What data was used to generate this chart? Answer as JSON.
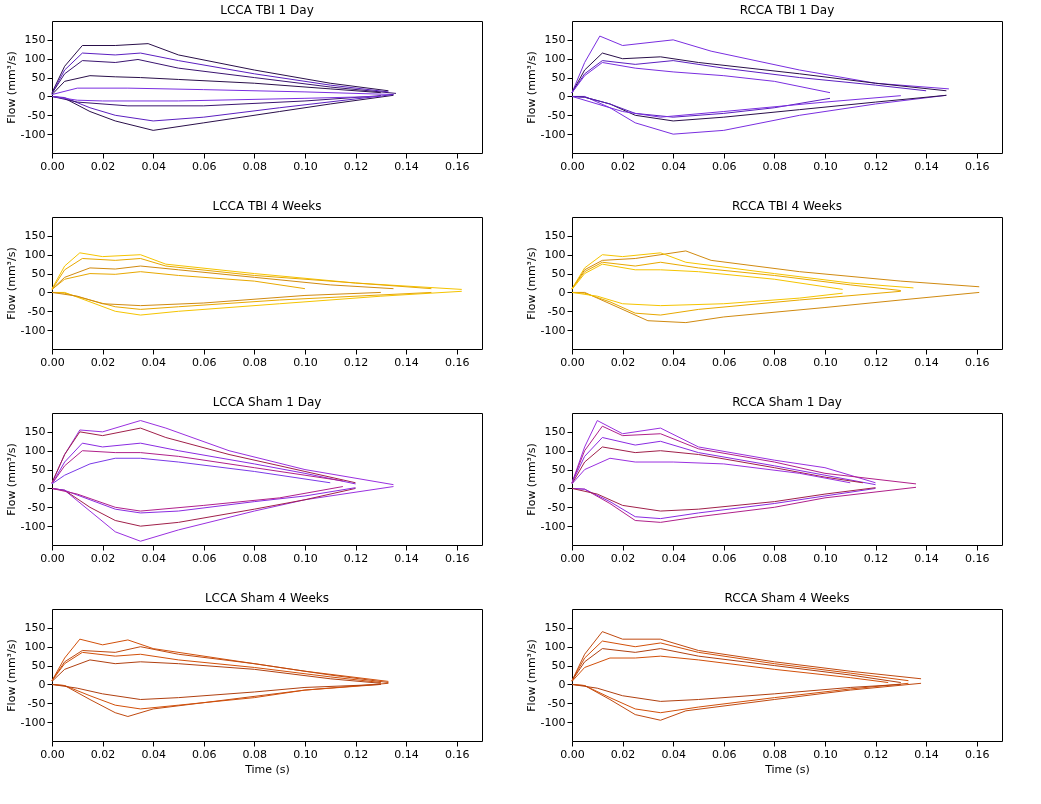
{
  "chart_data": [
    {
      "type": "line",
      "title": "LCCA TBI 1 Day",
      "ylabel": "Flow (mm³/s)",
      "xlim": [
        0,
        0.17
      ],
      "ylim": [
        -150,
        200
      ],
      "xticks": [
        {
          "value": 0,
          "label": "0.00"
        },
        {
          "value": 0.02,
          "label": "0.02"
        },
        {
          "value": 0.04,
          "label": "0.04"
        },
        {
          "value": 0.06,
          "label": "0.06"
        },
        {
          "value": 0.08,
          "label": "0.08"
        },
        {
          "value": 0.1,
          "label": "0.10"
        },
        {
          "value": 0.12,
          "label": "0.12"
        },
        {
          "value": 0.14,
          "label": "0.14"
        },
        {
          "value": 0.16,
          "label": "0.16"
        }
      ],
      "yticks": [
        -100,
        -50,
        0,
        50,
        100,
        150
      ],
      "series": [
        {
          "color": "#2a0f4a",
          "x": [
            0,
            0.005,
            0.012,
            0.025,
            0.038,
            0.05,
            0.08,
            0.11,
            0.133
          ],
          "values": [
            10,
            80,
            135,
            135,
            140,
            110,
            70,
            35,
            15
          ]
        },
        {
          "color": "#5b1fc0",
          "x": [
            0,
            0.005,
            0.012,
            0.025,
            0.035,
            0.05,
            0.08,
            0.11,
            0.133
          ],
          "values": [
            8,
            70,
            115,
            110,
            115,
            95,
            60,
            30,
            12
          ]
        },
        {
          "color": "#3a1470",
          "x": [
            0,
            0.005,
            0.012,
            0.025,
            0.034,
            0.05,
            0.08,
            0.11,
            0.136
          ],
          "values": [
            8,
            60,
            95,
            90,
            98,
            75,
            50,
            25,
            8
          ]
        },
        {
          "color": "#2a0f4a",
          "x": [
            0,
            0.005,
            0.015,
            0.025,
            0.035,
            0.05,
            0.08,
            0.11,
            0.13
          ],
          "values": [
            5,
            40,
            55,
            52,
            50,
            45,
            35,
            20,
            10
          ]
        },
        {
          "color": "#7a2ee0",
          "x": [
            0,
            0.01,
            0.03,
            0.06,
            0.1,
            0.135
          ],
          "values": [
            5,
            22,
            22,
            18,
            12,
            5
          ]
        },
        {
          "color": "#2a0f4a",
          "x": [
            0,
            0.005,
            0.015,
            0.025,
            0.04,
            0.06,
            0.09,
            0.11,
            0.135
          ],
          "values": [
            0,
            -5,
            -40,
            -65,
            -90,
            -70,
            -40,
            -20,
            3
          ]
        },
        {
          "color": "#5b1fc0",
          "x": [
            0,
            0.005,
            0.015,
            0.025,
            0.04,
            0.06,
            0.09,
            0.135
          ],
          "values": [
            0,
            -3,
            -30,
            -50,
            -65,
            -55,
            -30,
            5
          ]
        },
        {
          "color": "#3a1470",
          "x": [
            0,
            0.01,
            0.03,
            0.06,
            0.1,
            0.13
          ],
          "values": [
            0,
            -15,
            -25,
            -25,
            -12,
            2
          ]
        },
        {
          "color": "#7a2ee0",
          "x": [
            0,
            0.01,
            0.02,
            0.05,
            0.1,
            0.13
          ],
          "values": [
            0,
            -10,
            -12,
            -12,
            -5,
            0
          ]
        }
      ]
    },
    {
      "type": "line",
      "title": "RCCA TBI 1 Day",
      "ylabel": "Flow (mm³/s)",
      "xlim": [
        0,
        0.17
      ],
      "ylim": [
        -150,
        200
      ],
      "xticks": [
        {
          "value": 0,
          "label": "0.00"
        },
        {
          "value": 0.02,
          "label": "0.02"
        },
        {
          "value": 0.04,
          "label": "0.04"
        },
        {
          "value": 0.06,
          "label": "0.06"
        },
        {
          "value": 0.08,
          "label": "0.08"
        },
        {
          "value": 0.1,
          "label": "0.10"
        },
        {
          "value": 0.12,
          "label": "0.12"
        },
        {
          "value": 0.14,
          "label": "0.14"
        },
        {
          "value": 0.16,
          "label": "0.16"
        }
      ],
      "yticks": [
        -100,
        -50,
        0,
        50,
        100,
        150
      ],
      "series": [
        {
          "color": "#7a2ee0",
          "x": [
            0,
            0.005,
            0.011,
            0.02,
            0.04,
            0.055,
            0.09,
            0.12,
            0.149
          ],
          "values": [
            10,
            90,
            160,
            135,
            150,
            120,
            70,
            35,
            20
          ]
        },
        {
          "color": "#2a0f4a",
          "x": [
            0,
            0.005,
            0.012,
            0.02,
            0.035,
            0.05,
            0.09,
            0.12,
            0.148
          ],
          "values": [
            10,
            70,
            115,
            100,
            105,
            90,
            60,
            35,
            15
          ]
        },
        {
          "color": "#5b1fc0",
          "x": [
            0,
            0.005,
            0.012,
            0.025,
            0.04,
            0.06,
            0.09,
            0.12,
            0.14
          ],
          "values": [
            10,
            60,
            95,
            85,
            95,
            75,
            50,
            30,
            15
          ]
        },
        {
          "color": "#7a2ee0",
          "x": [
            0,
            0.005,
            0.012,
            0.025,
            0.04,
            0.06,
            0.08,
            0.102
          ],
          "values": [
            10,
            55,
            90,
            75,
            65,
            55,
            40,
            10
          ]
        },
        {
          "color": "#7a2ee0",
          "x": [
            0,
            0.005,
            0.015,
            0.025,
            0.04,
            0.06,
            0.09,
            0.12,
            0.148
          ],
          "values": [
            0,
            0,
            -30,
            -70,
            -100,
            -90,
            -50,
            -20,
            3
          ]
        },
        {
          "color": "#2a0f4a",
          "x": [
            0,
            0.005,
            0.015,
            0.025,
            0.04,
            0.06,
            0.09,
            0.12,
            0.148
          ],
          "values": [
            0,
            -2,
            -20,
            -50,
            -65,
            -55,
            -35,
            -15,
            3
          ]
        },
        {
          "color": "#5b1fc0",
          "x": [
            0,
            0.005,
            0.015,
            0.025,
            0.04,
            0.06,
            0.08,
            0.102
          ],
          "values": [
            0,
            -2,
            -20,
            -45,
            -55,
            -45,
            -30,
            -5
          ]
        },
        {
          "color": "#7a2ee0",
          "x": [
            0,
            0.02,
            0.035,
            0.06,
            0.1,
            0.13
          ],
          "values": [
            0,
            -40,
            -55,
            -40,
            -15,
            2
          ]
        }
      ]
    },
    {
      "type": "line",
      "title": "LCCA TBI 4 Weeks",
      "ylabel": "Flow (mm³/s)",
      "xlim": [
        0,
        0.17
      ],
      "ylim": [
        -150,
        200
      ],
      "xticks": [
        {
          "value": 0,
          "label": "0.00"
        },
        {
          "value": 0.02,
          "label": "0.02"
        },
        {
          "value": 0.04,
          "label": "0.04"
        },
        {
          "value": 0.06,
          "label": "0.06"
        },
        {
          "value": 0.08,
          "label": "0.08"
        },
        {
          "value": 0.1,
          "label": "0.10"
        },
        {
          "value": 0.12,
          "label": "0.12"
        },
        {
          "value": 0.14,
          "label": "0.14"
        },
        {
          "value": 0.16,
          "label": "0.16"
        }
      ],
      "yticks": [
        -100,
        -50,
        0,
        50,
        100,
        150
      ],
      "series": [
        {
          "color": "#f5c400",
          "x": [
            0,
            0.005,
            0.011,
            0.02,
            0.035,
            0.045,
            0.08,
            0.12,
            0.162
          ],
          "values": [
            10,
            70,
            105,
            95,
            100,
            75,
            50,
            25,
            8
          ]
        },
        {
          "color": "#e8a800",
          "x": [
            0,
            0.005,
            0.012,
            0.025,
            0.035,
            0.045,
            0.08,
            0.12,
            0.15
          ],
          "values": [
            8,
            60,
            90,
            85,
            90,
            70,
            45,
            25,
            10
          ]
        },
        {
          "color": "#d08a10",
          "x": [
            0,
            0.005,
            0.015,
            0.025,
            0.035,
            0.05,
            0.08,
            0.11,
            0.135
          ],
          "values": [
            8,
            40,
            65,
            62,
            70,
            60,
            40,
            20,
            10
          ]
        },
        {
          "color": "#e8a800",
          "x": [
            0,
            0.005,
            0.015,
            0.025,
            0.035,
            0.05,
            0.08,
            0.1
          ],
          "values": [
            8,
            35,
            50,
            48,
            55,
            45,
            30,
            10
          ]
        },
        {
          "color": "#f5c400",
          "x": [
            0,
            0.005,
            0.015,
            0.025,
            0.035,
            0.05,
            0.09,
            0.13,
            0.162
          ],
          "values": [
            0,
            0,
            -25,
            -50,
            -60,
            -50,
            -30,
            -10,
            3
          ]
        },
        {
          "color": "#e8a800",
          "x": [
            0,
            0.005,
            0.015,
            0.025,
            0.035,
            0.05,
            0.09,
            0.15
          ],
          "values": [
            0,
            -2,
            -20,
            -38,
            -45,
            -38,
            -20,
            0
          ]
        },
        {
          "color": "#d08a10",
          "x": [
            0,
            0.01,
            0.02,
            0.035,
            0.06,
            0.1,
            0.13
          ],
          "values": [
            0,
            -10,
            -30,
            -35,
            -28,
            -8,
            0
          ]
        }
      ]
    },
    {
      "type": "line",
      "title": "RCCA TBI 4 Weeks",
      "ylabel": "Flow (mm³/s)",
      "xlim": [
        0,
        0.17
      ],
      "ylim": [
        -150,
        200
      ],
      "xticks": [
        {
          "value": 0,
          "label": "0.00"
        },
        {
          "value": 0.02,
          "label": "0.02"
        },
        {
          "value": 0.04,
          "label": "0.04"
        },
        {
          "value": 0.06,
          "label": "0.06"
        },
        {
          "value": 0.08,
          "label": "0.08"
        },
        {
          "value": 0.1,
          "label": "0.10"
        },
        {
          "value": 0.12,
          "label": "0.12"
        },
        {
          "value": 0.14,
          "label": "0.14"
        },
        {
          "value": 0.16,
          "label": "0.16"
        }
      ],
      "yticks": [
        -100,
        -50,
        0,
        50,
        100,
        150
      ],
      "series": [
        {
          "color": "#d08a10",
          "x": [
            0,
            0.005,
            0.012,
            0.025,
            0.045,
            0.055,
            0.09,
            0.13,
            0.161
          ],
          "values": [
            10,
            60,
            85,
            90,
            110,
            85,
            55,
            30,
            15
          ]
        },
        {
          "color": "#f5c400",
          "x": [
            0,
            0.005,
            0.012,
            0.02,
            0.035,
            0.045,
            0.08,
            0.11,
            0.135
          ],
          "values": [
            10,
            65,
            100,
            95,
            105,
            80,
            50,
            25,
            12
          ]
        },
        {
          "color": "#e8a800",
          "x": [
            0,
            0.005,
            0.012,
            0.025,
            0.035,
            0.05,
            0.08,
            0.11,
            0.13
          ],
          "values": [
            10,
            55,
            80,
            70,
            80,
            65,
            45,
            20,
            5
          ]
        },
        {
          "color": "#f5c400",
          "x": [
            0,
            0.005,
            0.012,
            0.025,
            0.035,
            0.05,
            0.08,
            0.107
          ],
          "values": [
            8,
            50,
            75,
            60,
            60,
            55,
            35,
            8
          ]
        },
        {
          "color": "#d08a10",
          "x": [
            0,
            0.005,
            0.015,
            0.03,
            0.045,
            0.06,
            0.1,
            0.13,
            0.161
          ],
          "values": [
            0,
            0,
            -30,
            -75,
            -80,
            -65,
            -40,
            -20,
            0
          ]
        },
        {
          "color": "#e8a800",
          "x": [
            0,
            0.005,
            0.015,
            0.025,
            0.035,
            0.05,
            0.09,
            0.13
          ],
          "values": [
            0,
            -2,
            -25,
            -55,
            -60,
            -45,
            -20,
            3
          ]
        },
        {
          "color": "#f5c400",
          "x": [
            0,
            0.01,
            0.02,
            0.035,
            0.06,
            0.09,
            0.107
          ],
          "values": [
            0,
            -10,
            -30,
            -35,
            -30,
            -15,
            -2
          ]
        }
      ]
    },
    {
      "type": "line",
      "title": "LCCA Sham 1 Day",
      "ylabel": "Flow (mm³/s)",
      "xlim": [
        0,
        0.17
      ],
      "ylim": [
        -150,
        200
      ],
      "xticks": [
        {
          "value": 0,
          "label": "0.00"
        },
        {
          "value": 0.02,
          "label": "0.02"
        },
        {
          "value": 0.04,
          "label": "0.04"
        },
        {
          "value": 0.06,
          "label": "0.06"
        },
        {
          "value": 0.08,
          "label": "0.08"
        },
        {
          "value": 0.1,
          "label": "0.10"
        },
        {
          "value": 0.12,
          "label": "0.12"
        },
        {
          "value": 0.14,
          "label": "0.14"
        },
        {
          "value": 0.16,
          "label": "0.16"
        }
      ],
      "yticks": [
        -100,
        -50,
        0,
        50,
        100,
        150
      ],
      "series": [
        {
          "color": "#9a30e0",
          "x": [
            0,
            0.005,
            0.011,
            0.02,
            0.035,
            0.045,
            0.07,
            0.1,
            0.135
          ],
          "values": [
            15,
            90,
            155,
            150,
            180,
            160,
            100,
            50,
            10
          ]
        },
        {
          "color": "#a0204a",
          "x": [
            0,
            0.005,
            0.011,
            0.02,
            0.035,
            0.045,
            0.07,
            0.1,
            0.12
          ],
          "values": [
            15,
            90,
            150,
            140,
            160,
            135,
            90,
            45,
            15
          ]
        },
        {
          "color": "#8a2be2",
          "x": [
            0,
            0.005,
            0.012,
            0.02,
            0.035,
            0.05,
            0.08,
            0.1,
            0.12
          ],
          "values": [
            12,
            70,
            120,
            110,
            120,
            100,
            65,
            40,
            12
          ]
        },
        {
          "color": "#b0208a",
          "x": [
            0,
            0.005,
            0.012,
            0.025,
            0.035,
            0.05,
            0.08,
            0.1,
            0.115
          ],
          "values": [
            12,
            60,
            100,
            95,
            95,
            85,
            55,
            35,
            20
          ]
        },
        {
          "color": "#7a3ae8",
          "x": [
            0,
            0.005,
            0.015,
            0.025,
            0.035,
            0.05,
            0.08,
            0.11
          ],
          "values": [
            12,
            35,
            65,
            80,
            80,
            70,
            45,
            15
          ]
        },
        {
          "color": "#9a30e0",
          "x": [
            0,
            0.005,
            0.015,
            0.025,
            0.035,
            0.05,
            0.08,
            0.1,
            0.135
          ],
          "values": [
            0,
            -5,
            -60,
            -115,
            -140,
            -110,
            -60,
            -30,
            5
          ]
        },
        {
          "color": "#a0204a",
          "x": [
            0,
            0.005,
            0.015,
            0.025,
            0.035,
            0.05,
            0.08,
            0.1,
            0.12
          ],
          "values": [
            0,
            -5,
            -50,
            -85,
            -100,
            -90,
            -55,
            -30,
            0
          ]
        },
        {
          "color": "#8a2be2",
          "x": [
            0,
            0.005,
            0.015,
            0.025,
            0.035,
            0.05,
            0.08,
            0.1,
            0.12
          ],
          "values": [
            0,
            -5,
            -30,
            -55,
            -65,
            -60,
            -35,
            -20,
            2
          ]
        },
        {
          "color": "#b0208a",
          "x": [
            0,
            0.01,
            0.025,
            0.035,
            0.06,
            0.09,
            0.115
          ],
          "values": [
            0,
            -15,
            -50,
            -60,
            -45,
            -25,
            5
          ]
        }
      ]
    },
    {
      "type": "line",
      "title": "RCCA Sham 1 Day",
      "ylabel": "Flow (mm³/s)",
      "xlim": [
        0,
        0.17
      ],
      "ylim": [
        -150,
        200
      ],
      "xticks": [
        {
          "value": 0,
          "label": "0.00"
        },
        {
          "value": 0.02,
          "label": "0.02"
        },
        {
          "value": 0.04,
          "label": "0.04"
        },
        {
          "value": 0.06,
          "label": "0.06"
        },
        {
          "value": 0.08,
          "label": "0.08"
        },
        {
          "value": 0.1,
          "label": "0.10"
        },
        {
          "value": 0.12,
          "label": "0.12"
        },
        {
          "value": 0.14,
          "label": "0.14"
        },
        {
          "value": 0.16,
          "label": "0.16"
        }
      ],
      "yticks": [
        -100,
        -50,
        0,
        50,
        100,
        150
      ],
      "series": [
        {
          "color": "#9a30e0",
          "x": [
            0,
            0.005,
            0.01,
            0.02,
            0.035,
            0.05,
            0.08,
            0.1,
            0.12
          ],
          "values": [
            15,
            110,
            180,
            145,
            160,
            110,
            75,
            55,
            15
          ]
        },
        {
          "color": "#b0208a",
          "x": [
            0,
            0.005,
            0.012,
            0.02,
            0.035,
            0.05,
            0.08,
            0.1,
            0.136
          ],
          "values": [
            15,
            100,
            165,
            140,
            145,
            105,
            70,
            40,
            12
          ]
        },
        {
          "color": "#8a2be2",
          "x": [
            0,
            0.005,
            0.012,
            0.025,
            0.035,
            0.05,
            0.08,
            0.1,
            0.12
          ],
          "values": [
            15,
            85,
            135,
            115,
            125,
            95,
            60,
            35,
            10
          ]
        },
        {
          "color": "#a0204a",
          "x": [
            0,
            0.005,
            0.012,
            0.025,
            0.035,
            0.05,
            0.08,
            0.1,
            0.115
          ],
          "values": [
            12,
            70,
            110,
            95,
            100,
            90,
            55,
            30,
            15
          ]
        },
        {
          "color": "#9a30e0",
          "x": [
            0,
            0.005,
            0.015,
            0.025,
            0.04,
            0.06,
            0.09,
            0.11
          ],
          "values": [
            12,
            50,
            80,
            70,
            70,
            65,
            40,
            15
          ]
        },
        {
          "color": "#b0208a",
          "x": [
            0,
            0.005,
            0.015,
            0.025,
            0.035,
            0.05,
            0.08,
            0.1,
            0.136
          ],
          "values": [
            0,
            -2,
            -40,
            -85,
            -90,
            -75,
            -50,
            -25,
            3
          ]
        },
        {
          "color": "#8a2be2",
          "x": [
            0,
            0.005,
            0.015,
            0.025,
            0.035,
            0.05,
            0.08,
            0.1,
            0.12
          ],
          "values": [
            0,
            -2,
            -35,
            -75,
            -80,
            -65,
            -40,
            -20,
            0
          ]
        },
        {
          "color": "#a0204a",
          "x": [
            0,
            0.01,
            0.02,
            0.035,
            0.05,
            0.08,
            0.1,
            0.12
          ],
          "values": [
            0,
            -15,
            -45,
            -60,
            -55,
            -35,
            -15,
            2
          ]
        }
      ]
    },
    {
      "type": "line",
      "title": "LCCA Sham 4 Weeks",
      "xlabel": "Time (s)",
      "ylabel": "Flow (mm³/s)",
      "xlim": [
        0,
        0.17
      ],
      "ylim": [
        -150,
        200
      ],
      "xticks": [
        {
          "value": 0,
          "label": "0.00"
        },
        {
          "value": 0.02,
          "label": "0.02"
        },
        {
          "value": 0.04,
          "label": "0.04"
        },
        {
          "value": 0.06,
          "label": "0.06"
        },
        {
          "value": 0.08,
          "label": "0.08"
        },
        {
          "value": 0.1,
          "label": "0.10"
        },
        {
          "value": 0.12,
          "label": "0.12"
        },
        {
          "value": 0.14,
          "label": "0.14"
        },
        {
          "value": 0.16,
          "label": "0.16"
        }
      ],
      "yticks": [
        -100,
        -50,
        0,
        50,
        100,
        150
      ],
      "series": [
        {
          "color": "#d2500a",
          "x": [
            0,
            0.005,
            0.011,
            0.02,
            0.03,
            0.04,
            0.07,
            0.1,
            0.133
          ],
          "values": [
            10,
            70,
            120,
            105,
            118,
            95,
            65,
            35,
            8
          ]
        },
        {
          "color": "#c04a10",
          "x": [
            0,
            0.005,
            0.012,
            0.025,
            0.035,
            0.05,
            0.08,
            0.11,
            0.133
          ],
          "values": [
            10,
            60,
            90,
            85,
            100,
            80,
            55,
            25,
            5
          ]
        },
        {
          "color": "#d2500a",
          "x": [
            0,
            0.005,
            0.012,
            0.025,
            0.035,
            0.05,
            0.08,
            0.11,
            0.13
          ],
          "values": [
            10,
            55,
            85,
            75,
            80,
            65,
            45,
            20,
            5
          ]
        },
        {
          "color": "#b04010",
          "x": [
            0,
            0.005,
            0.015,
            0.025,
            0.035,
            0.05,
            0.08,
            0.11,
            0.13
          ],
          "values": [
            8,
            40,
            65,
            55,
            60,
            55,
            40,
            15,
            3
          ]
        },
        {
          "color": "#c04a10",
          "x": [
            0,
            0.005,
            0.015,
            0.025,
            0.03,
            0.04,
            0.07,
            0.1,
            0.133
          ],
          "values": [
            0,
            -3,
            -40,
            -75,
            -85,
            -65,
            -40,
            -15,
            3
          ]
        },
        {
          "color": "#d2500a",
          "x": [
            0,
            0.005,
            0.015,
            0.025,
            0.035,
            0.05,
            0.08,
            0.1,
            0.13
          ],
          "values": [
            0,
            -3,
            -30,
            -55,
            -65,
            -55,
            -35,
            -15,
            0
          ]
        },
        {
          "color": "#b04010",
          "x": [
            0,
            0.01,
            0.02,
            0.035,
            0.05,
            0.08,
            0.1,
            0.13
          ],
          "values": [
            0,
            -10,
            -25,
            -40,
            -35,
            -20,
            -8,
            0
          ]
        }
      ]
    },
    {
      "type": "line",
      "title": "RCCA Sham 4 Weeks",
      "xlabel": "Time (s)",
      "ylabel": "Flow (mm³/s)",
      "xlim": [
        0,
        0.17
      ],
      "ylim": [
        -150,
        200
      ],
      "xticks": [
        {
          "value": 0,
          "label": "0.00"
        },
        {
          "value": 0.02,
          "label": "0.02"
        },
        {
          "value": 0.04,
          "label": "0.04"
        },
        {
          "value": 0.06,
          "label": "0.06"
        },
        {
          "value": 0.08,
          "label": "0.08"
        },
        {
          "value": 0.1,
          "label": "0.10"
        },
        {
          "value": 0.12,
          "label": "0.12"
        },
        {
          "value": 0.14,
          "label": "0.14"
        },
        {
          "value": 0.16,
          "label": "0.16"
        }
      ],
      "yticks": [
        -100,
        -50,
        0,
        50,
        100,
        150
      ],
      "series": [
        {
          "color": "#c04a10",
          "x": [
            0,
            0.005,
            0.012,
            0.02,
            0.035,
            0.05,
            0.08,
            0.11,
            0.138
          ],
          "values": [
            10,
            80,
            140,
            120,
            120,
            90,
            60,
            35,
            15
          ]
        },
        {
          "color": "#d2500a",
          "x": [
            0,
            0.005,
            0.012,
            0.025,
            0.035,
            0.05,
            0.08,
            0.11,
            0.133
          ],
          "values": [
            10,
            70,
            115,
            100,
            110,
            85,
            55,
            30,
            10
          ]
        },
        {
          "color": "#b04010",
          "x": [
            0,
            0.005,
            0.012,
            0.025,
            0.035,
            0.05,
            0.08,
            0.11,
            0.13
          ],
          "values": [
            10,
            60,
            95,
            85,
            95,
            75,
            50,
            25,
            5
          ]
        },
        {
          "color": "#d2500a",
          "x": [
            0,
            0.005,
            0.015,
            0.025,
            0.035,
            0.05,
            0.08,
            0.11,
            0.125
          ],
          "values": [
            8,
            45,
            70,
            70,
            75,
            65,
            40,
            18,
            5
          ]
        },
        {
          "color": "#c04a10",
          "x": [
            0,
            0.005,
            0.015,
            0.025,
            0.035,
            0.045,
            0.08,
            0.11,
            0.138
          ],
          "values": [
            0,
            -3,
            -40,
            -80,
            -95,
            -70,
            -40,
            -15,
            3
          ]
        },
        {
          "color": "#d2500a",
          "x": [
            0,
            0.005,
            0.015,
            0.025,
            0.035,
            0.05,
            0.08,
            0.11,
            0.133
          ],
          "values": [
            0,
            -3,
            -35,
            -65,
            -75,
            -60,
            -35,
            -12,
            3
          ]
        },
        {
          "color": "#b04010",
          "x": [
            0,
            0.01,
            0.02,
            0.035,
            0.05,
            0.08,
            0.11,
            0.13
          ],
          "values": [
            0,
            -10,
            -30,
            -45,
            -40,
            -25,
            -8,
            0
          ]
        }
      ]
    }
  ]
}
